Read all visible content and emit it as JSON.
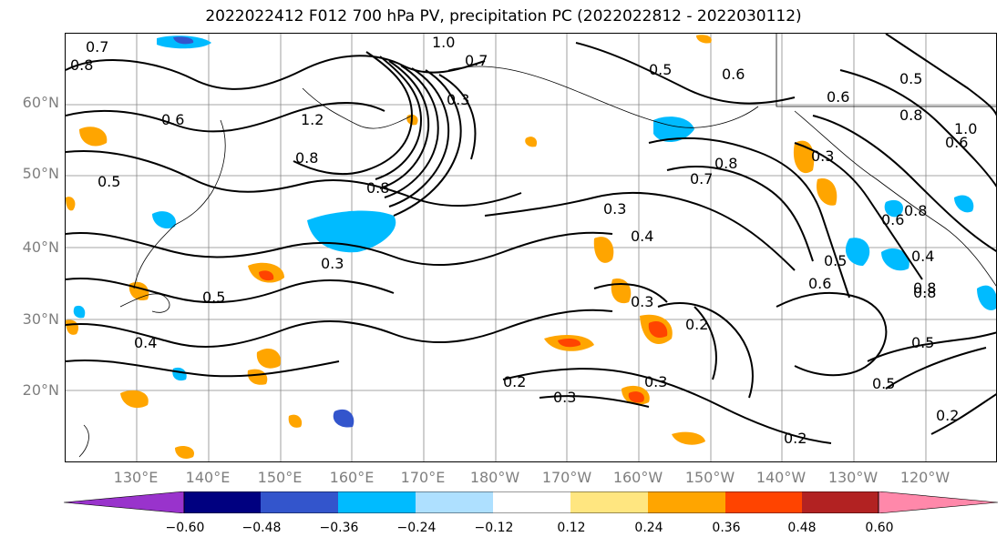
{
  "title": "2022022412 F012 700 hPa PV, precipitation PC (2022022812 - 2022030112)",
  "lat_labels": [
    "60°N",
    "50°N",
    "40°N",
    "30°N",
    "20°N"
  ],
  "lon_labels": [
    "130°E",
    "140°E",
    "150°E",
    "160°E",
    "170°E",
    "180°W",
    "170°W",
    "160°W",
    "150°W",
    "140°W",
    "130°W",
    "120°W"
  ],
  "colorbar": {
    "ticks": [
      "−0.60",
      "−0.48",
      "−0.36",
      "−0.24",
      "−0.12",
      "0.12",
      "0.24",
      "0.36",
      "0.48",
      "0.60"
    ],
    "colors": [
      "#9933cc",
      "#000080",
      "#3355cc",
      "#00bbff",
      "#aee0ff",
      "#ffffff",
      "#ffe680",
      "#ffa500",
      "#ff4400",
      "#b22222",
      "#ff88aa"
    ]
  },
  "contour_labels": [
    "0.7",
    "0.8",
    "1.0",
    "0.7",
    "0.5",
    "0.6",
    "0.6",
    "0.5",
    "0.8",
    "0.6",
    "1.0",
    "0.6",
    "1.2",
    "0.3",
    "0.8",
    "0.8",
    "0.5",
    "0.8",
    "0.3",
    "0.7",
    "0.3",
    "0.8",
    "0.6",
    "0.4",
    "0.5",
    "0.3",
    "0.5",
    "0.6",
    "0.8",
    "0.3",
    "0.2",
    "0.4",
    "0.2",
    "0.3",
    "0.3",
    "0.5",
    "0.5",
    "0.2",
    "0.2",
    "0.4",
    "0.8"
  ]
}
